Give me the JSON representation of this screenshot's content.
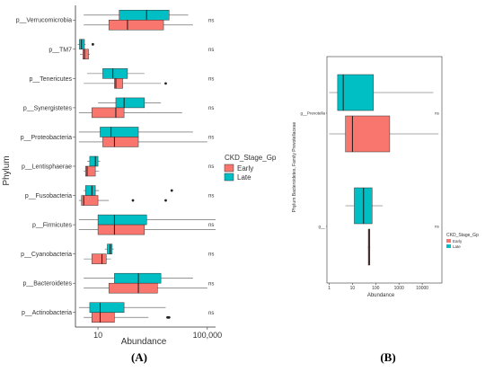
{
  "colors": {
    "early": "#F8766D",
    "late": "#00BFC4",
    "whisker": "#555555",
    "median": "#1a1a1a"
  },
  "chart_data": [
    {
      "panel": "(A)",
      "type": "boxplot",
      "orientation": "horizontal",
      "xlabel": "Abundance",
      "ylabel": "Phylum",
      "x_scale": "log10",
      "xlim": [
        1.5,
        200000
      ],
      "x_ticks": [
        10,
        100000
      ],
      "x_tick_labels": [
        "10",
        "100,000"
      ],
      "legend": {
        "title": "CKD_Stage_Gp",
        "entries": [
          "Early",
          "Late"
        ],
        "position": "right"
      },
      "series": [
        {
          "name": "Early",
          "color": "#F8766D"
        },
        {
          "name": "Late",
          "color": "#00BFC4"
        }
      ],
      "categories": [
        {
          "label": "p__Verrucomicrobia",
          "annotation": "ns",
          "late": {
            "wlo": 3,
            "q1": 60,
            "median": 600,
            "q3": 4000,
            "whi": 20000,
            "outliers": []
          },
          "early": {
            "wlo": 3,
            "q1": 25,
            "median": 120,
            "q3": 2500,
            "whi": 30000,
            "outliers": []
          }
        },
        {
          "label": "p__TM7",
          "annotation": "ns",
          "late": {
            "wlo": 1.8,
            "q1": 2.1,
            "median": 2.5,
            "q3": 3.2,
            "whi": 3.5,
            "outliers": [
              6.5
            ]
          },
          "early": {
            "wlo": 2.2,
            "q1": 2.8,
            "median": 3.2,
            "q3": 4.5,
            "whi": 5,
            "outliers": []
          }
        },
        {
          "label": "p__Tenericutes",
          "annotation": "ns",
          "late": {
            "wlo": 4,
            "q1": 15,
            "median": 35,
            "q3": 120,
            "whi": 500,
            "outliers": []
          },
          "early": {
            "wlo": 3,
            "q1": 40,
            "median": 45,
            "q3": 80,
            "whi": 2000,
            "outliers": [
              3000
            ]
          }
        },
        {
          "label": "p__Synergistetes",
          "annotation": "ns",
          "late": {
            "wlo": 10,
            "q1": 45,
            "median": 90,
            "q3": 500,
            "whi": 2000,
            "outliers": []
          },
          "early": {
            "wlo": 2,
            "q1": 6,
            "median": 45,
            "q3": 90,
            "whi": 12000,
            "outliers": []
          }
        },
        {
          "label": "p__Proteobacteria",
          "annotation": "ns",
          "late": {
            "wlo": 2,
            "q1": 12,
            "median": 30,
            "q3": 300,
            "whi": 30000,
            "outliers": []
          },
          "early": {
            "wlo": 2,
            "q1": 15,
            "median": 40,
            "q3": 300,
            "whi": 100000,
            "outliers": []
          }
        },
        {
          "label": "p__Lentisphaerae",
          "annotation": "ns",
          "late": {
            "wlo": 4,
            "q1": 5,
            "median": 8,
            "q3": 10,
            "whi": 12,
            "outliers": []
          },
          "early": {
            "wlo": 3,
            "q1": 3.5,
            "median": 4,
            "q3": 8,
            "whi": 11,
            "outliers": []
          }
        },
        {
          "label": "p__Fusobacteria",
          "annotation": "ns",
          "late": {
            "wlo": 3,
            "q1": 3.5,
            "median": 6,
            "q3": 8,
            "whi": 11,
            "outliers": [
              5000
            ]
          },
          "early": {
            "wlo": 2,
            "q1": 2.5,
            "median": 3,
            "q3": 10,
            "whi": 25,
            "outliers": [
              190,
              3000
            ]
          }
        },
        {
          "label": "p__Firmicutes",
          "annotation": "ns",
          "late": {
            "wlo": 2,
            "q1": 10,
            "median": 40,
            "q3": 600,
            "whi": 200000,
            "outliers": []
          },
          "early": {
            "wlo": 2,
            "q1": 10,
            "median": 40,
            "q3": 500,
            "whi": 200000,
            "outliers": []
          }
        },
        {
          "label": "p__Cyanobacteria",
          "annotation": "ns",
          "late": {
            "wlo": 18,
            "q1": 22,
            "median": 28,
            "q3": 33,
            "whi": 38,
            "outliers": []
          },
          "early": {
            "wlo": 3,
            "q1": 6,
            "median": 14,
            "q3": 20,
            "whi": 30,
            "outliers": []
          }
        },
        {
          "label": "p__Bacteroidetes",
          "annotation": "ns",
          "late": {
            "wlo": 3,
            "q1": 40,
            "median": 300,
            "q3": 2000,
            "whi": 30000,
            "outliers": []
          },
          "early": {
            "wlo": 3,
            "q1": 25,
            "median": 300,
            "q3": 1500,
            "whi": 100000,
            "outliers": []
          }
        },
        {
          "label": "p__Actinobacteria",
          "annotation": "ns",
          "late": {
            "wlo": 2,
            "q1": 5,
            "median": 12,
            "q3": 90,
            "whi": 3000,
            "outliers": []
          },
          "early": {
            "wlo": 3,
            "q1": 6,
            "median": 12,
            "q3": 40,
            "whi": 700,
            "outliers": [
              3500,
              3800,
              4000
            ]
          }
        }
      ]
    },
    {
      "panel": "(B)",
      "type": "boxplot",
      "orientation": "horizontal",
      "xlabel": "Abundance",
      "ylabel": "Phylum Bacteroidetes, Family Prevotellaceae",
      "x_scale": "log10",
      "xlim": [
        0.8,
        70000
      ],
      "x_ticks": [
        1,
        10,
        100,
        1000,
        10000
      ],
      "x_tick_labels": [
        "1",
        "10",
        "100",
        "1000",
        "10000"
      ],
      "legend": {
        "title": "CKD_Stage_Gp",
        "entries": [
          "Early",
          "Late"
        ],
        "position": "right"
      },
      "series": [
        {
          "name": "Early",
          "color": "#F8766D"
        },
        {
          "name": "Late",
          "color": "#00BFC4"
        }
      ],
      "categories": [
        {
          "label": "g__Prevotella",
          "annotation": "ns",
          "late": {
            "wlo": 1,
            "q1": 2.3,
            "median": 4,
            "q3": 80,
            "whi": 30000,
            "outliers": []
          },
          "early": {
            "wlo": 1,
            "q1": 5,
            "median": 10,
            "q3": 400,
            "whi": 50000,
            "outliers": []
          }
        },
        {
          "label": "g__",
          "annotation": "ns",
          "late": {
            "wlo": 5,
            "q1": 12,
            "median": 30,
            "q3": 70,
            "whi": 200,
            "outliers": []
          },
          "early": {
            "wlo": 45,
            "q1": 48,
            "median": 52,
            "q3": 56,
            "whi": 58,
            "outliers": []
          }
        }
      ]
    }
  ],
  "captions": {
    "a": "(A)",
    "b": "(B)"
  }
}
